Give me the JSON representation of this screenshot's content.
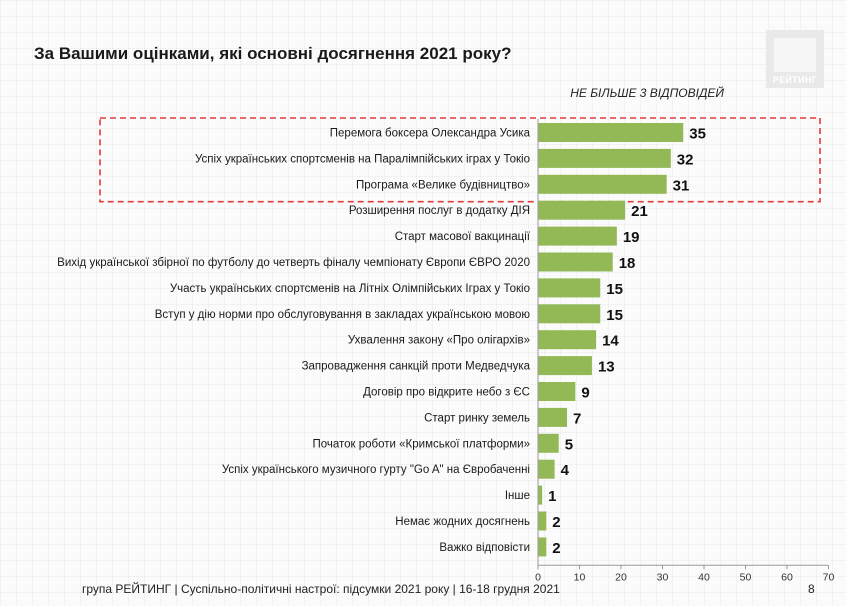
{
  "title": "За Вашими оцінками, які основні досягнення 2021 року?",
  "logo": {
    "text": "РЕЙТИНГ"
  },
  "note": "НЕ БІЛЬШЕ 3 ВІДПОВІДЕЙ",
  "chart_data": {
    "type": "bar",
    "orientation": "horizontal",
    "categories": [
      "Перемога боксера Олександра Усика",
      "Успіх українських спортсменів на Паралімпійських іграх у Токіо",
      "Програма «Велике будівництво»",
      "Розширення послуг в додатку ДІЯ",
      "Старт масової вакцинації",
      "Вихід української збірної по футболу до четверть фіналу чемпіонату Європи ЄВРО 2020",
      "Участь українських спортсменів на Літніх Олімпійських Іграх у Токіо",
      "Вступ у дію норми про обслуговування в закладах українською мовою",
      "Ухвалення закону «Про олігархів»",
      "Запровадження санкцій проти Медведчука",
      "Договір про відкрите небо з ЄС",
      "Старт ринку земель",
      "Початок роботи «Кримської платформи»",
      "Успіх українського музичного гурту \"Go A\" на Євробаченні",
      "Інше",
      "Немає жодних досягнень",
      "Важко відповісти"
    ],
    "values": [
      35,
      32,
      31,
      21,
      19,
      18,
      15,
      15,
      14,
      13,
      9,
      7,
      5,
      4,
      1,
      2,
      2
    ],
    "highlighted_categories": [
      "Перемога боксера Олександра Усика",
      "Успіх українських спортсменів на Паралімпійських іграх у Токіо",
      "Програма «Велике будівництво»"
    ],
    "xlim": [
      0,
      70
    ],
    "xticks": [
      0,
      10,
      20,
      30,
      40,
      50,
      60,
      70
    ],
    "bar_color": "#93b957",
    "highlight_border_color": "#e23b3b",
    "grid": false
  },
  "footer": "група РЕЙТИНГ | Суспільно-політичні настрої: підсумки 2021 року | 16-18 грудня 2021",
  "page_number": "8"
}
